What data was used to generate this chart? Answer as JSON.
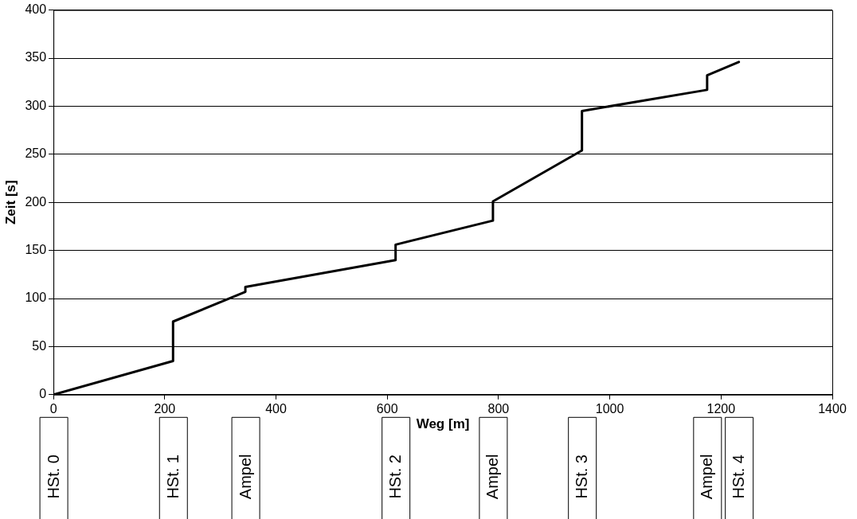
{
  "chart_data": {
    "type": "line",
    "xlabel": "Weg [m]",
    "ylabel": "Zeit [s]",
    "x": [
      0,
      215,
      215,
      345,
      345,
      615,
      615,
      790,
      790,
      950,
      950,
      1175,
      1175,
      1232
    ],
    "series": [
      {
        "color": "#000000",
        "values": [
          0,
          35,
          76,
          107,
          112,
          140,
          156,
          181,
          201,
          254,
          295,
          317,
          332,
          346
        ]
      }
    ],
    "xlim": [
      0,
      1400
    ],
    "xticks": [
      0,
      200,
      400,
      600,
      800,
      1000,
      1200,
      1400
    ],
    "ylim": [
      0,
      400
    ],
    "yticks": [
      0,
      50,
      100,
      150,
      200,
      250,
      300,
      350,
      400
    ],
    "grid": "y",
    "legend": false,
    "marker": "none",
    "line_style": "solid",
    "annotations": [
      "HSt. 0",
      "HSt. 1",
      "Ampel",
      "HSt. 2",
      "Ampel",
      "HSt. 3",
      "Ampel",
      "HSt. 4"
    ]
  }
}
